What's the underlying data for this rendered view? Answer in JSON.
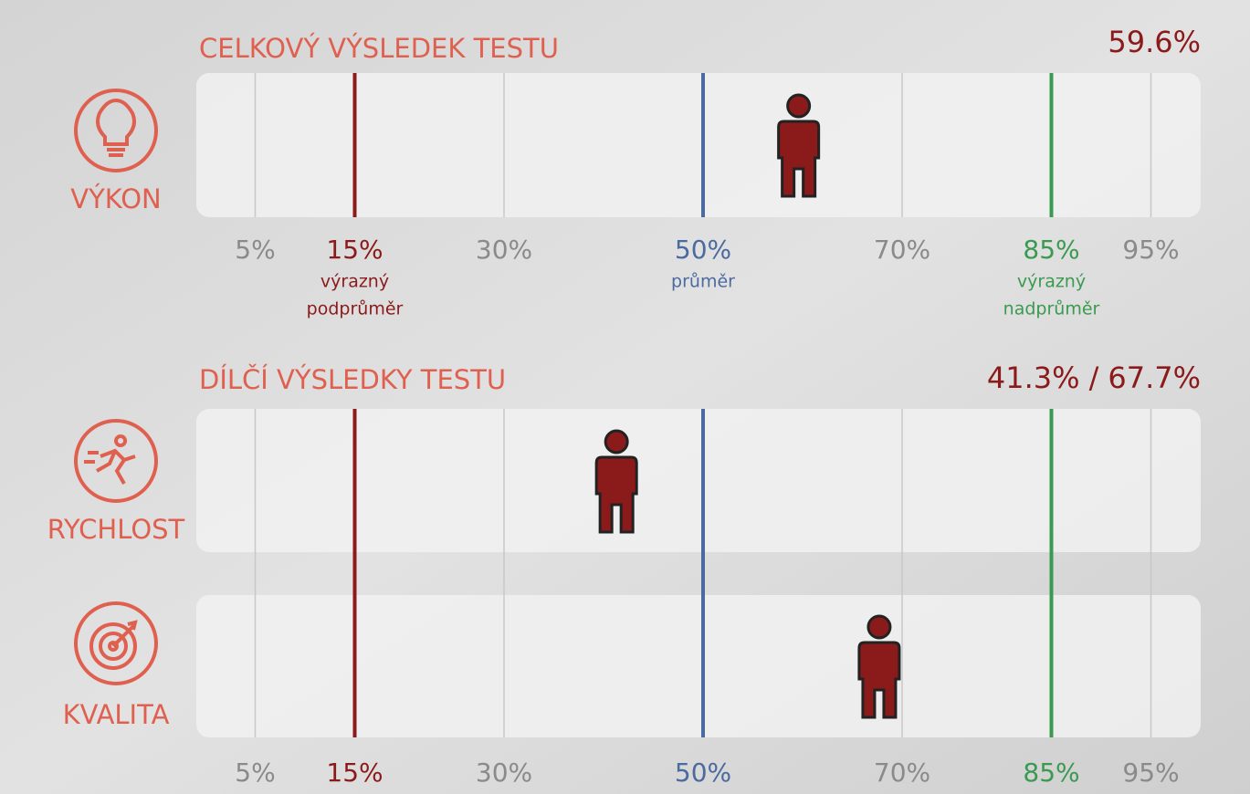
{
  "chart_data": {
    "type": "percentile",
    "sections": [
      "CELKOVÝ VÝSLEDEK TESTU",
      "DÍLČÍ VÝSLEDKY TESTU"
    ],
    "categories": [
      "VÝKON",
      "RYCHLOST",
      "KVALITA"
    ],
    "values": [
      59.6,
      41.3,
      67.7
    ],
    "value_labels": [
      "59.6%",
      "41.3%",
      "67.7%"
    ],
    "value_label_separator": "/",
    "color": "#8b1a1a",
    "xlim": [
      0,
      100
    ],
    "xticks": [
      {
        "value": 5,
        "label": "5%"
      },
      {
        "value": 30,
        "label": "30%"
      },
      {
        "value": 70,
        "label": "70%"
      },
      {
        "value": 95,
        "label": "95%"
      }
    ],
    "reference_lines": [
      {
        "value": 15,
        "label": "15%",
        "color": "#8b1a1a",
        "description": [
          "výrazný",
          "podprůměr"
        ]
      },
      {
        "value": 50,
        "label": "50%",
        "color": "#4a6aa0",
        "description": [
          "průměr"
        ]
      },
      {
        "value": 85,
        "label": "85%",
        "color": "#3a9a50",
        "description": [
          "výrazný",
          "nadprůměr"
        ]
      }
    ],
    "grid": true
  }
}
